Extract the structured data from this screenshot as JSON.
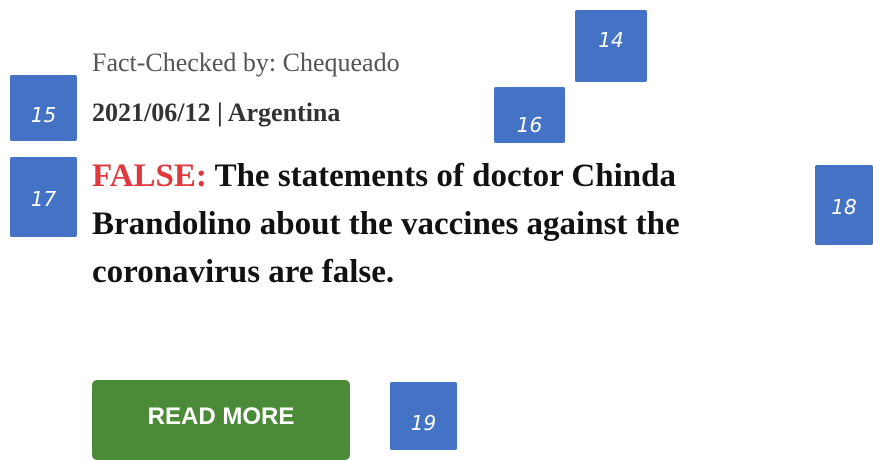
{
  "article": {
    "fact_checked_by": "Fact-Checked by: Chequeado",
    "meta": "2021/06/12 | Argentina",
    "rating": "FALSE:",
    "headline": "The statements of doctor Chinda Brandolino about the vaccines against the coronavirus are false.",
    "button": "READ MORE"
  },
  "annotations": [
    14,
    15,
    16,
    17,
    18,
    19
  ]
}
